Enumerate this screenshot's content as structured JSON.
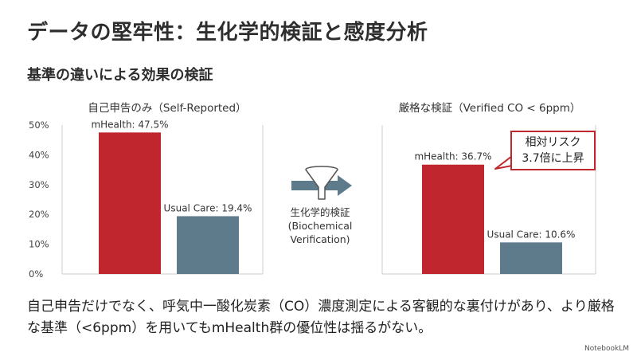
{
  "title": "データの堅牢性：生化学的検証と感度分析",
  "subtitle": "基準の違いによる効果の検証",
  "arrow": {
    "icon": "funnel-icon",
    "label_line1": "生化学的検証",
    "label_line2": "(Biochemical",
    "label_line3": "Verification)"
  },
  "callout": {
    "line1": "相対リスク",
    "line2": "3.7倍に上昇"
  },
  "footer": "自己申告だけでなく、呼気中一酸化炭素（CO）濃度測定による客観的な裏付けがあり、より厳格な基準（<6ppm）を用いてもmHealth群の優位性は揺るがない。",
  "brand": "NotebookLM",
  "colors": {
    "mhealth": "#c0262d",
    "usual_care": "#5e7b8c",
    "axis": "#cccccc"
  },
  "chart_data": [
    {
      "type": "bar",
      "title": "自己申告のみ（Self-Reported）",
      "categories": [
        "mHealth",
        "Usual Care"
      ],
      "values": [
        47.5,
        19.4
      ],
      "data_labels": [
        "mHealth: 47.5%",
        "Usual Care: 19.4%"
      ],
      "ylim": [
        0,
        50
      ],
      "yticks": [
        "0%",
        "10%",
        "20%",
        "30%",
        "40%",
        "50%"
      ],
      "grid": false
    },
    {
      "type": "bar",
      "title": "厳格な検証（Verified CO < 6ppm）",
      "categories": [
        "mHealth",
        "Usual Care"
      ],
      "values": [
        36.7,
        10.6
      ],
      "data_labels": [
        "mHealth: 36.7%",
        "Usual Care: 10.6%"
      ],
      "ylim": [
        0,
        50
      ],
      "grid": false
    }
  ]
}
